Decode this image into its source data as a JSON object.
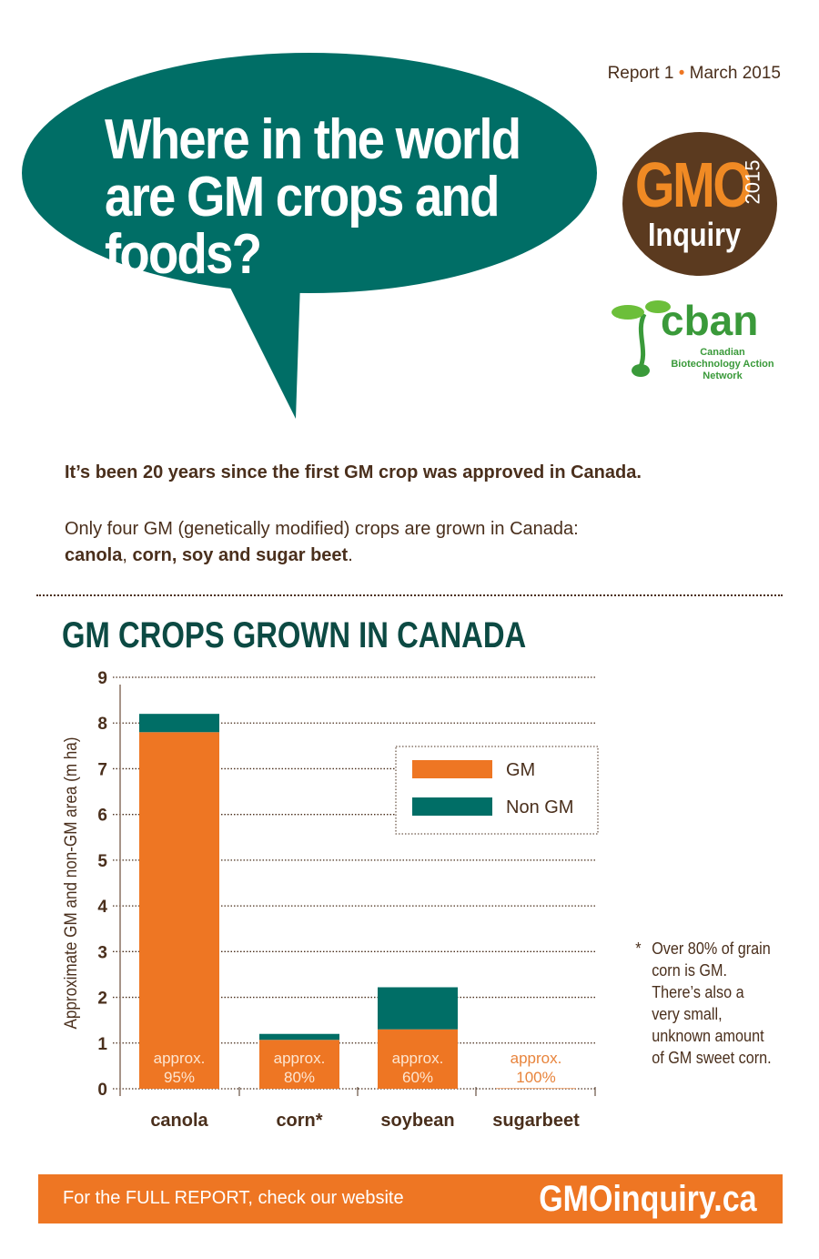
{
  "header": {
    "report": "Report 1",
    "date": "March 2015",
    "title": "Where in the world are GM crops and foods?"
  },
  "logos": {
    "gmo_inquiry": {
      "gmo": "GMO",
      "year": "2015",
      "inquiry": "Inquiry"
    },
    "cban": {
      "word": "cban",
      "subtitle": "Canadian Biotechnology Action Network"
    }
  },
  "intro": {
    "line1": "It’s been 20 years since the first GM crop was approved in Canada.",
    "line2": "Only four GM (genetically modified) crops are grown in Canada:",
    "line3_bold": "canola",
    "line3_sep": ", ",
    "line3_bold2": "corn, soy and sugar beet",
    "line3_end": "."
  },
  "colors": {
    "gm": "#ee7623",
    "non_gm": "#006e66",
    "text": "#4a2f1c"
  },
  "chart_data": {
    "type": "bar",
    "stacked": true,
    "title": "GM CROPS GROWN IN CANADA",
    "xlabel": "",
    "ylabel": "Approximate GM and non-GM area (m ha)",
    "ylim": [
      0,
      9
    ],
    "yticks": [
      "0",
      "1",
      "2",
      "3",
      "4",
      "5",
      "6",
      "7",
      "8",
      "9"
    ],
    "grid": true,
    "legend": "top-right",
    "categories": [
      "canola",
      "corn*",
      "soybean",
      "sugarbeet"
    ],
    "series": [
      {
        "name": "GM",
        "values": [
          7.8,
          1.07,
          1.3,
          0.01
        ]
      },
      {
        "name": "Non GM",
        "values": [
          0.4,
          0.13,
          0.92,
          0
        ]
      }
    ],
    "annotations": [
      {
        "line1": "approx.",
        "line2": "95%"
      },
      {
        "line1": "approx.",
        "line2": "80%"
      },
      {
        "line1": "approx.",
        "line2": "60%"
      },
      {
        "line1": "approx.",
        "line2": "100%"
      }
    ]
  },
  "note": {
    "star": "*",
    "text": "Over 80% of grain corn is GM. There’s also a very small, unknown amount of GM sweet corn."
  },
  "footer": {
    "left": "For the FULL REPORT, check our website",
    "right": "GMOinquiry.ca"
  }
}
